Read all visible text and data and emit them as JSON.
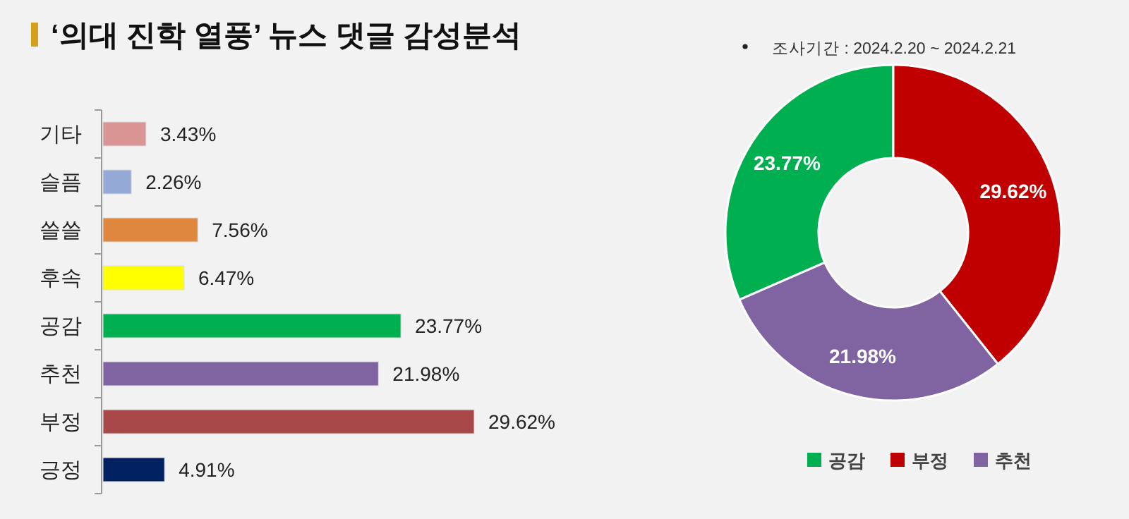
{
  "chart_data": [
    {
      "type": "bar",
      "orientation": "horizontal",
      "title": "‘의대 진학 열풍’ 뉴스 댓글 감성분석",
      "categories": [
        "기타",
        "슬픔",
        "쓸쓸",
        "후속",
        "공감",
        "추천",
        "부정",
        "긍정"
      ],
      "values": [
        3.43,
        2.26,
        7.56,
        6.47,
        23.77,
        21.98,
        29.62,
        4.91
      ],
      "value_labels": [
        "3.43%",
        "2.26%",
        "7.56%",
        "6.47%",
        "23.77%",
        "21.98%",
        "29.62%",
        "4.91%"
      ],
      "colors": [
        "#d99594",
        "#95a9d6",
        "#e0873f",
        "#ffff00",
        "#00b050",
        "#8064a2",
        "#a84848",
        "#002060"
      ]
    },
    {
      "type": "donut",
      "annotations": [
        "조사기간 : 2024.2.20 ~ 2024.2.21"
      ],
      "categories": [
        "공감",
        "부정",
        "추천"
      ],
      "values": [
        23.77,
        29.62,
        21.98
      ],
      "value_labels": [
        "23.77%",
        "29.62%",
        "21.98%"
      ],
      "colors": [
        "#00b050",
        "#c00000",
        "#8064a2"
      ],
      "legend": "bottom"
    }
  ]
}
